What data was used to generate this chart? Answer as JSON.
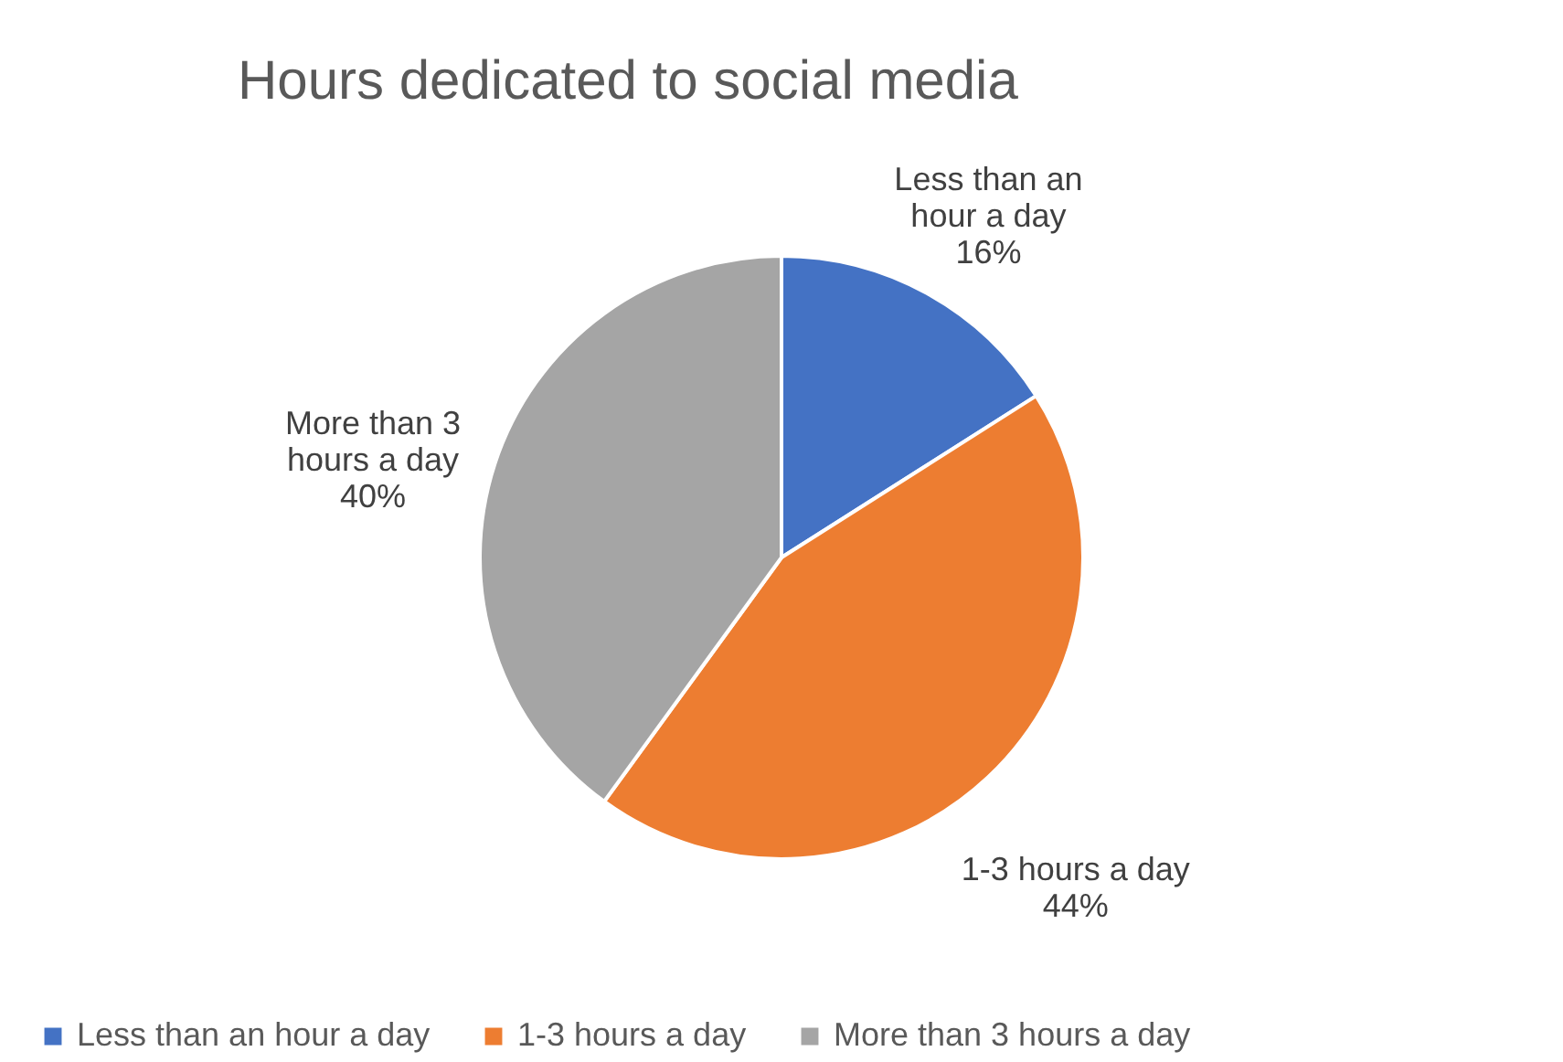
{
  "chart_data": {
    "type": "pie",
    "title": "Hours dedicated to social media",
    "categories": [
      "Less than an hour a day",
      "1-3 hours a day",
      "More than 3 hours a day"
    ],
    "values": [
      16,
      44,
      40
    ],
    "colors": [
      "#4472c4",
      "#ed7d31",
      "#a5a5a5"
    ],
    "value_labels": [
      "16%",
      "44%",
      "40%"
    ],
    "legend": "bottom"
  }
}
